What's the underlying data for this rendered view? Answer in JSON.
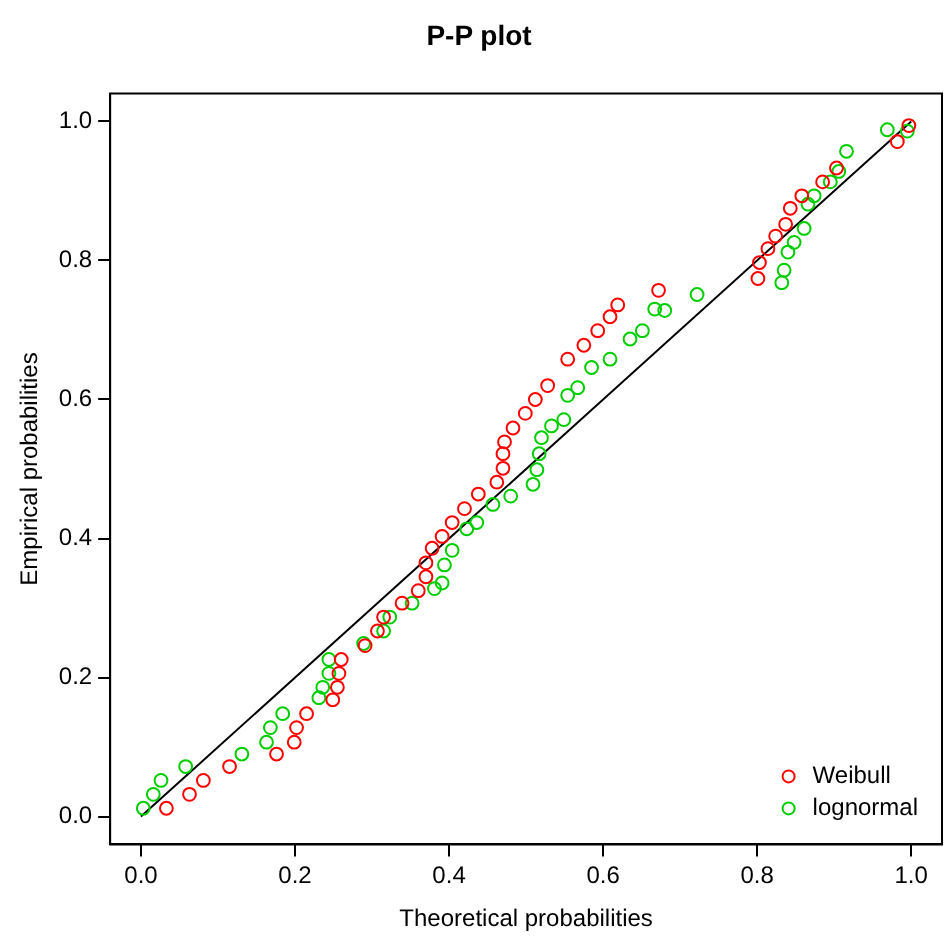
{
  "chart_data": {
    "type": "scatter",
    "title": "P-P plot",
    "xlabel": "Theoretical probabilities",
    "ylabel": "Empirical probabilities",
    "xlim": [
      -0.04,
      1.04
    ],
    "ylim": [
      -0.04,
      1.04
    ],
    "xticks": [
      {
        "value": 0,
        "label": "0.0"
      },
      0.2,
      0.4,
      0.6,
      0.8,
      {
        "value": 1,
        "label": "1.0"
      }
    ],
    "yticks": [
      {
        "value": 0,
        "label": "0.0"
      },
      0.2,
      0.4,
      0.6,
      0.8,
      {
        "value": 1,
        "label": "1.0"
      }
    ],
    "grid": false,
    "legend": "bottom right",
    "marker": "circle",
    "series": [
      {
        "name": "Weibull",
        "color": "#ff0000",
        "x": [
          0.033,
          0.063,
          0.081,
          0.115,
          0.176,
          0.199,
          0.202,
          0.215,
          0.249,
          0.255,
          0.257,
          0.26,
          0.291,
          0.307,
          0.315,
          0.339,
          0.36,
          0.37,
          0.37,
          0.378,
          0.391,
          0.404,
          0.42,
          0.438,
          0.462,
          0.47,
          0.47,
          0.472,
          0.483,
          0.499,
          0.512,
          0.528,
          0.554,
          0.575,
          0.593,
          0.609,
          0.619,
          0.672,
          0.801,
          0.803,
          0.814,
          0.824,
          0.837,
          0.843,
          0.858,
          0.885,
          0.903,
          0.982,
          0.997
        ],
        "values": [
          0.012,
          0.032,
          0.052,
          0.072,
          0.09,
          0.107,
          0.128,
          0.148,
          0.168,
          0.186,
          0.206,
          0.226,
          0.246,
          0.267,
          0.287,
          0.307,
          0.325,
          0.345,
          0.365,
          0.386,
          0.403,
          0.423,
          0.443,
          0.464,
          0.481,
          0.501,
          0.522,
          0.539,
          0.559,
          0.58,
          0.6,
          0.62,
          0.658,
          0.678,
          0.699,
          0.719,
          0.736,
          0.757,
          0.774,
          0.797,
          0.817,
          0.835,
          0.852,
          0.875,
          0.893,
          0.913,
          0.933,
          0.971,
          0.994
        ]
      },
      {
        "name": "lognormal",
        "color": "#00cd00",
        "x": [
          0.003,
          0.016,
          0.026,
          0.058,
          0.131,
          0.163,
          0.168,
          0.184,
          0.231,
          0.236,
          0.244,
          0.244,
          0.289,
          0.315,
          0.323,
          0.352,
          0.381,
          0.391,
          0.394,
          0.404,
          0.423,
          0.436,
          0.457,
          0.48,
          0.509,
          0.514,
          0.517,
          0.52,
          0.533,
          0.549,
          0.554,
          0.567,
          0.585,
          0.609,
          0.635,
          0.651,
          0.667,
          0.68,
          0.722,
          0.832,
          0.835,
          0.84,
          0.848,
          0.861,
          0.866,
          0.874,
          0.895,
          0.906,
          0.916,
          0.969,
          0.995
        ],
        "values": [
          0.012,
          0.032,
          0.052,
          0.072,
          0.09,
          0.107,
          0.128,
          0.148,
          0.171,
          0.186,
          0.206,
          0.226,
          0.249,
          0.267,
          0.287,
          0.307,
          0.328,
          0.336,
          0.362,
          0.383,
          0.414,
          0.423,
          0.449,
          0.461,
          0.478,
          0.499,
          0.522,
          0.545,
          0.562,
          0.571,
          0.606,
          0.617,
          0.646,
          0.658,
          0.687,
          0.699,
          0.73,
          0.728,
          0.751,
          0.768,
          0.786,
          0.812,
          0.826,
          0.846,
          0.881,
          0.893,
          0.913,
          0.928,
          0.957,
          0.988,
          0.986
        ]
      },
      {
        "type": "line",
        "color": "#000000",
        "x": [
          0,
          1
        ],
        "values": [
          0,
          1
        ],
        "marker": "none"
      }
    ]
  }
}
